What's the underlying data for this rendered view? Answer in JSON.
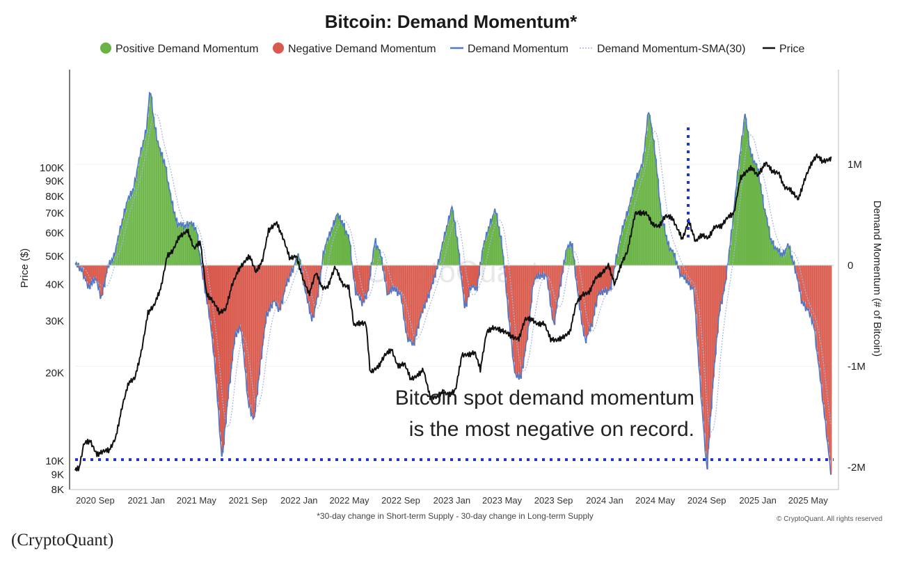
{
  "source_caption": "(CryptoQuant)",
  "chart_data": {
    "type": "area",
    "title": "Bitcoin: Demand Momentum*",
    "legend": [
      {
        "label": "Positive Demand Momentum",
        "kind": "dot",
        "color": "#6ab446"
      },
      {
        "label": "Negative Demand Momentum",
        "kind": "dot",
        "color": "#d95a4c"
      },
      {
        "label": "Demand Momentum",
        "kind": "line",
        "color": "#4f78c8"
      },
      {
        "label": "Demand Momentum-SMA(30)",
        "kind": "dotted",
        "color": "#9fb6e6"
      },
      {
        "label": "Price",
        "kind": "line",
        "color": "#111111"
      }
    ],
    "legend_placement": "top-center",
    "ylabel_left": "Price ($)",
    "ylabel_right": "Demand Momentum (# of Bitcoin)",
    "y_left_scale": "log",
    "y_left_range": [
      8000,
      160000
    ],
    "y_left_ticks": [
      "8K",
      "9K",
      "10K",
      "20K",
      "30K",
      "40K",
      "50K",
      "60K",
      "70K",
      "80K",
      "90K",
      "100K"
    ],
    "y_left_tick_values": [
      8000,
      9000,
      10000,
      20000,
      30000,
      40000,
      50000,
      60000,
      70000,
      80000,
      90000,
      100000
    ],
    "y_right_range": [
      -2100000,
      1700000
    ],
    "y_right_ticks": [
      "-2M",
      "-1M",
      "0",
      "1M"
    ],
    "y_right_tick_values": [
      -2000000,
      -1000000,
      0,
      1000000
    ],
    "x_range": [
      "2020-07-15",
      "2025-07-01"
    ],
    "x_ticks": [
      "2020 Sep",
      "2021 Jan",
      "2021 May",
      "2021 Sep",
      "2022 Jan",
      "2022 May",
      "2022 Sep",
      "2023 Jan",
      "2023 May",
      "2023 Sep",
      "2024 Jan",
      "2024 May",
      "2024 Sep",
      "2025 Jan",
      "2025 May"
    ],
    "x_tick_dates": [
      "2020-09-01",
      "2021-01-01",
      "2021-05-01",
      "2021-09-01",
      "2022-01-01",
      "2022-05-01",
      "2022-09-01",
      "2023-01-01",
      "2023-05-01",
      "2023-09-01",
      "2024-01-01",
      "2024-05-01",
      "2024-09-01",
      "2025-01-01",
      "2025-05-01"
    ],
    "footnote": "*30-day change in Short-term Supply - 30-day change in Long-term Supply",
    "copyright": "© CryptoQuant. All rights reserved",
    "annotation": [
      "Bitcoin spot demand momentum",
      "is the most negative on record."
    ],
    "demand_momentum": {
      "x": [
        "2020-07-15",
        "2020-08-01",
        "2020-08-15",
        "2020-09-01",
        "2020-09-15",
        "2020-10-01",
        "2020-10-15",
        "2020-11-01",
        "2020-11-15",
        "2020-12-01",
        "2020-12-15",
        "2021-01-01",
        "2021-01-10",
        "2021-01-20",
        "2021-02-01",
        "2021-02-15",
        "2021-03-01",
        "2021-03-15",
        "2021-04-01",
        "2021-04-15",
        "2021-05-01",
        "2021-05-15",
        "2021-06-01",
        "2021-06-15",
        "2021-07-01",
        "2021-07-15",
        "2021-08-01",
        "2021-08-15",
        "2021-09-01",
        "2021-09-15",
        "2021-10-01",
        "2021-10-15",
        "2021-11-01",
        "2021-11-15",
        "2021-12-01",
        "2021-12-15",
        "2022-01-01",
        "2022-01-15",
        "2022-02-01",
        "2022-02-15",
        "2022-03-01",
        "2022-03-15",
        "2022-04-01",
        "2022-04-15",
        "2022-05-01",
        "2022-05-15",
        "2022-06-01",
        "2022-06-15",
        "2022-07-01",
        "2022-07-15",
        "2022-08-01",
        "2022-08-15",
        "2022-09-01",
        "2022-09-15",
        "2022-10-01",
        "2022-10-15",
        "2022-11-01",
        "2022-11-15",
        "2022-12-01",
        "2022-12-15",
        "2023-01-01",
        "2023-01-15",
        "2023-02-01",
        "2023-02-15",
        "2023-03-01",
        "2023-03-15",
        "2023-04-01",
        "2023-04-15",
        "2023-05-01",
        "2023-05-15",
        "2023-06-01",
        "2023-06-15",
        "2023-07-01",
        "2023-07-15",
        "2023-08-01",
        "2023-08-15",
        "2023-09-01",
        "2023-09-15",
        "2023-10-01",
        "2023-10-15",
        "2023-11-01",
        "2023-11-15",
        "2023-12-01",
        "2023-12-15",
        "2024-01-01",
        "2024-01-15",
        "2024-02-01",
        "2024-02-15",
        "2024-03-01",
        "2024-03-15",
        "2024-04-01",
        "2024-04-15",
        "2024-05-01",
        "2024-05-15",
        "2024-06-01",
        "2024-06-15",
        "2024-07-01",
        "2024-07-15",
        "2024-08-01",
        "2024-08-15",
        "2024-09-01",
        "2024-09-15",
        "2024-10-01",
        "2024-10-15",
        "2024-11-01",
        "2024-11-15",
        "2024-12-01",
        "2024-12-15",
        "2025-01-01",
        "2025-01-15",
        "2025-02-01",
        "2025-02-15",
        "2025-03-01",
        "2025-03-15",
        "2025-04-01",
        "2025-04-15",
        "2025-05-01",
        "2025-05-15",
        "2025-06-01",
        "2025-06-15",
        "2025-06-25"
      ],
      "y": [
        10000,
        -50000,
        -230000,
        -120000,
        -330000,
        -20000,
        80000,
        380000,
        620000,
        750000,
        1050000,
        1350000,
        1750000,
        1400000,
        1150000,
        1000000,
        650000,
        420000,
        380000,
        420000,
        350000,
        -100000,
        -500000,
        -1050000,
        -1950000,
        -1300000,
        -700000,
        -600000,
        -1350000,
        -1550000,
        -950000,
        -500000,
        -350000,
        -450000,
        -200000,
        -50000,
        100000,
        -250000,
        -550000,
        -300000,
        150000,
        300000,
        500000,
        420000,
        250000,
        -250000,
        -380000,
        -250000,
        250000,
        100000,
        -300000,
        -220000,
        -300000,
        -700000,
        -800000,
        -550000,
        -350000,
        -200000,
        50000,
        300000,
        580000,
        220000,
        -450000,
        -200000,
        -250000,
        150000,
        400000,
        550000,
        200000,
        -450000,
        -1100000,
        -1100000,
        -700000,
        -150000,
        -100000,
        -100000,
        -600000,
        -250000,
        150000,
        220000,
        -400000,
        -750000,
        -600000,
        -300000,
        -250000,
        -250000,
        150000,
        400000,
        600000,
        850000,
        1000000,
        1550000,
        1100000,
        500000,
        200000,
        100000,
        -100000,
        -150000,
        -250000,
        -1100000,
        -2050000,
        -1200000,
        -450000,
        -200000,
        400000,
        950000,
        1500000,
        1100000,
        950000,
        600000,
        250000,
        150000,
        100000,
        200000,
        -50000,
        -350000,
        -450000,
        -600000,
        -1200000,
        -1700000,
        -2100000
      ]
    },
    "price": {
      "x": [
        "2020-07-15",
        "2020-07-25",
        "2020-08-05",
        "2020-08-20",
        "2020-09-05",
        "2020-09-20",
        "2020-10-05",
        "2020-10-20",
        "2020-11-05",
        "2020-11-20",
        "2020-12-05",
        "2020-12-20",
        "2021-01-05",
        "2021-01-20",
        "2021-02-05",
        "2021-02-20",
        "2021-03-05",
        "2021-03-20",
        "2021-04-10",
        "2021-04-25",
        "2021-05-10",
        "2021-05-25",
        "2021-06-10",
        "2021-06-25",
        "2021-07-10",
        "2021-07-25",
        "2021-08-10",
        "2021-08-25",
        "2021-09-05",
        "2021-09-20",
        "2021-10-05",
        "2021-10-20",
        "2021-11-08",
        "2021-11-25",
        "2021-12-10",
        "2021-12-25",
        "2022-01-10",
        "2022-01-25",
        "2022-02-10",
        "2022-02-25",
        "2022-03-10",
        "2022-03-28",
        "2022-04-15",
        "2022-04-30",
        "2022-05-12",
        "2022-05-25",
        "2022-06-10",
        "2022-06-20",
        "2022-07-10",
        "2022-07-25",
        "2022-08-10",
        "2022-08-25",
        "2022-09-10",
        "2022-09-25",
        "2022-10-10",
        "2022-10-25",
        "2022-11-10",
        "2022-11-25",
        "2022-12-10",
        "2022-12-25",
        "2023-01-10",
        "2023-01-25",
        "2023-02-10",
        "2023-02-25",
        "2023-03-10",
        "2023-03-25",
        "2023-04-10",
        "2023-04-25",
        "2023-05-10",
        "2023-05-25",
        "2023-06-10",
        "2023-06-25",
        "2023-07-10",
        "2023-07-25",
        "2023-08-10",
        "2023-08-25",
        "2023-09-10",
        "2023-09-25",
        "2023-10-10",
        "2023-10-25",
        "2023-11-10",
        "2023-11-25",
        "2023-12-10",
        "2023-12-25",
        "2024-01-10",
        "2024-01-25",
        "2024-02-10",
        "2024-02-25",
        "2024-03-14",
        "2024-03-25",
        "2024-04-10",
        "2024-04-25",
        "2024-05-10",
        "2024-05-25",
        "2024-06-10",
        "2024-06-25",
        "2024-07-05",
        "2024-07-20",
        "2024-08-05",
        "2024-08-20",
        "2024-09-05",
        "2024-09-20",
        "2024-10-05",
        "2024-10-20",
        "2024-11-05",
        "2024-11-20",
        "2024-12-05",
        "2024-12-17",
        "2025-01-01",
        "2025-01-20",
        "2025-02-05",
        "2025-02-20",
        "2025-03-05",
        "2025-03-20",
        "2025-04-08",
        "2025-04-25",
        "2025-05-10",
        "2025-05-22",
        "2025-06-05",
        "2025-06-25"
      ],
      "y": [
        9300,
        9500,
        11500,
        11700,
        10500,
        10800,
        10900,
        12000,
        15500,
        18500,
        19200,
        23500,
        32000,
        34000,
        39000,
        50000,
        52000,
        58000,
        61000,
        53000,
        56000,
        37000,
        35000,
        32000,
        33000,
        40000,
        45000,
        48000,
        50000,
        44000,
        48000,
        61000,
        65000,
        57000,
        49000,
        50000,
        42000,
        37000,
        44000,
        39000,
        39000,
        46000,
        40000,
        39000,
        29000,
        29500,
        29500,
        20000,
        21000,
        23000,
        24000,
        21000,
        21500,
        19000,
        19500,
        20500,
        16500,
        16500,
        17200,
        16800,
        17500,
        23000,
        23000,
        23500,
        20500,
        27500,
        28500,
        28000,
        27500,
        26500,
        26000,
        30500,
        30500,
        29200,
        29500,
        26000,
        25800,
        26500,
        27500,
        34500,
        37000,
        37500,
        42000,
        43500,
        46500,
        40000,
        47000,
        52000,
        70000,
        70000,
        70000,
        64000,
        63000,
        68500,
        67500,
        61000,
        57000,
        66000,
        56000,
        59000,
        57500,
        63000,
        63000,
        67500,
        70000,
        92000,
        97000,
        100000,
        94000,
        104000,
        97000,
        96000,
        86000,
        84000,
        78000,
        93000,
        104000,
        110000,
        105000,
        107000
      ]
    }
  }
}
